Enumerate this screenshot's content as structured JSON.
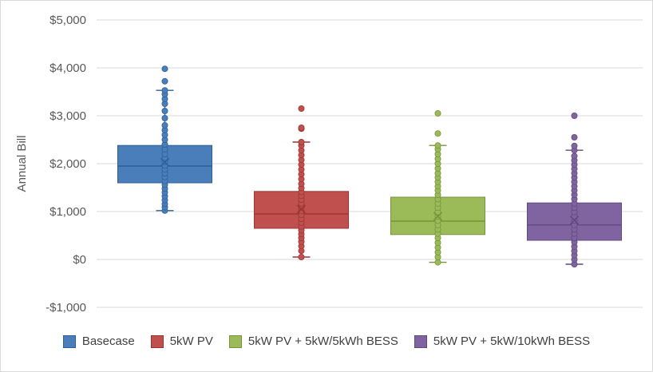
{
  "chart_data": {
    "type": "box",
    "ylabel": "Annual Bill",
    "ylim": [
      -1000,
      5000
    ],
    "ytick_values": [
      -1000,
      0,
      1000,
      2000,
      3000,
      4000,
      5000
    ],
    "ytick_labels": [
      "-$1,000",
      "$0",
      "$1,000",
      "$2,000",
      "$3,000",
      "$4,000",
      "$5,000"
    ],
    "grid": true,
    "legend_position": "bottom",
    "series": [
      {
        "name": "Basecase",
        "color": "#4a7ebb",
        "stroke": "#2f5f97",
        "min": 1020,
        "q1": 1600,
        "median": 1950,
        "q3": 2380,
        "max": 3530,
        "mean": 2030,
        "points": [
          1020,
          1090,
          1160,
          1240,
          1320,
          1400,
          1480,
          1560,
          1640,
          1720,
          1800,
          1880,
          1960,
          2040,
          2120,
          2200,
          2300,
          2400,
          2500,
          2600,
          2700,
          2800,
          2950,
          3100,
          3250,
          3350,
          3450,
          3530,
          3720,
          3980
        ]
      },
      {
        "name": "5kW PV",
        "color": "#c0504d",
        "stroke": "#9c3532",
        "min": 50,
        "q1": 650,
        "median": 950,
        "q3": 1420,
        "max": 2450,
        "mean": 1050,
        "points": [
          50,
          180,
          280,
          370,
          450,
          530,
          610,
          690,
          770,
          850,
          930,
          1010,
          1090,
          1170,
          1250,
          1330,
          1410,
          1490,
          1580,
          1680,
          1780,
          1880,
          1980,
          2080,
          2180,
          2280,
          2380,
          2450,
          2730,
          2750,
          3150
        ]
      },
      {
        "name": "5kW PV + 5kW/5kWh BESS",
        "color": "#9bbb59",
        "stroke": "#77933c",
        "min": -60,
        "q1": 520,
        "median": 800,
        "q3": 1300,
        "max": 2380,
        "mean": 900,
        "points": [
          -60,
          50,
          150,
          250,
          350,
          450,
          540,
          630,
          720,
          810,
          900,
          990,
          1080,
          1170,
          1260,
          1350,
          1440,
          1530,
          1620,
          1710,
          1800,
          1900,
          2000,
          2100,
          2200,
          2300,
          2380,
          2630,
          3050
        ]
      },
      {
        "name": "5kW PV + 5kW/10kWh BESS",
        "color": "#8064a2",
        "stroke": "#5f4a7e",
        "min": -100,
        "q1": 400,
        "median": 720,
        "q3": 1180,
        "max": 2280,
        "mean": 820,
        "points": [
          -100,
          0,
          90,
          180,
          270,
          360,
          450,
          540,
          630,
          720,
          810,
          900,
          990,
          1080,
          1170,
          1260,
          1350,
          1440,
          1530,
          1620,
          1710,
          1800,
          1890,
          1980,
          2070,
          2160,
          2280,
          2370,
          2550,
          3000
        ]
      }
    ]
  }
}
